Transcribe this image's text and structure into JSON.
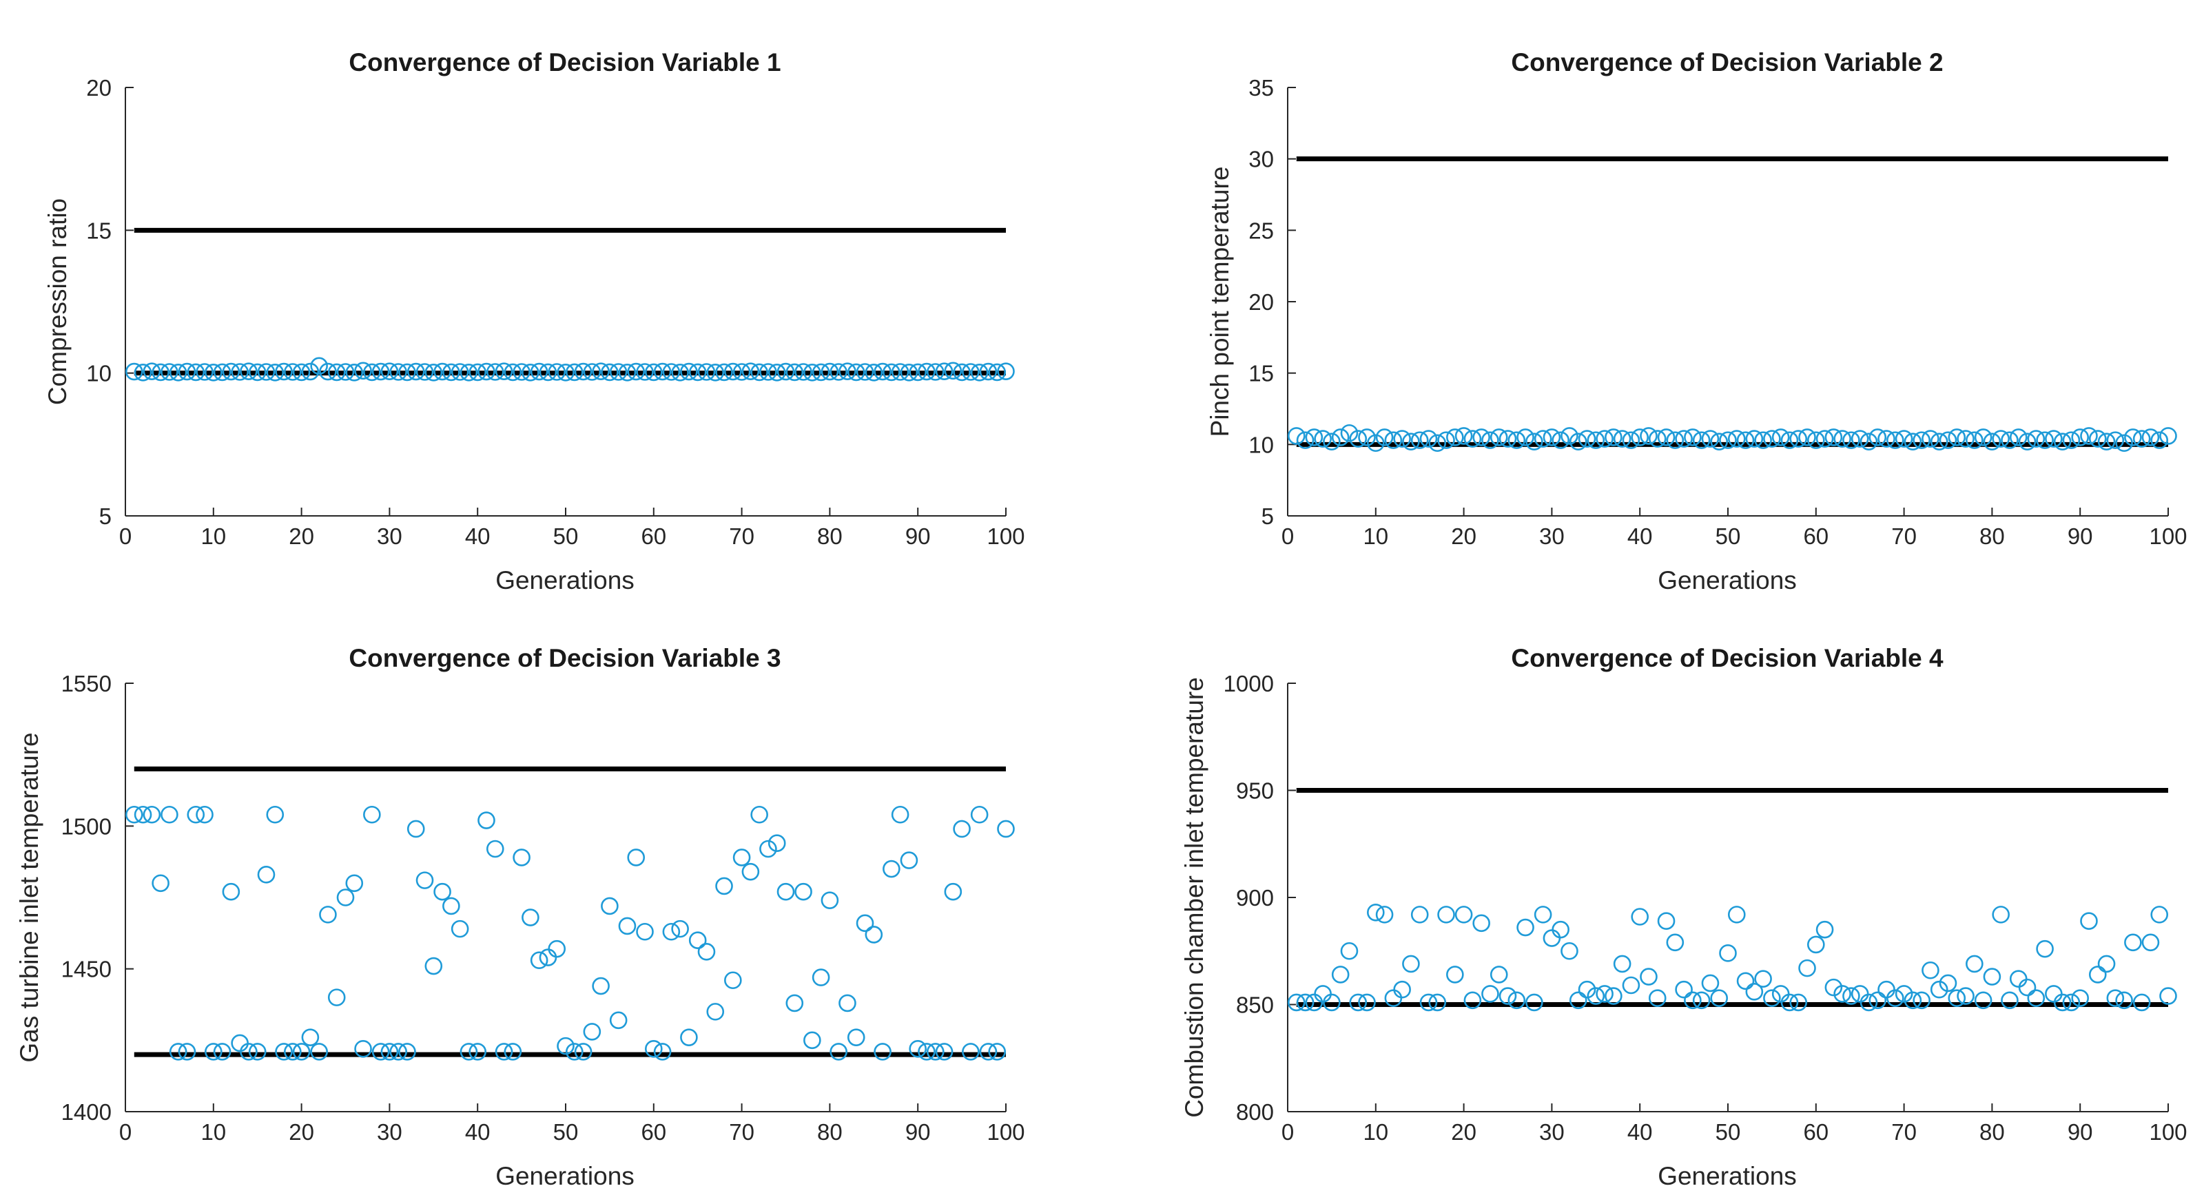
{
  "colors": {
    "marker": "#1f9bd8",
    "bound": "#000000",
    "axis": "#262626"
  },
  "chart_data": [
    {
      "type": "scatter",
      "title": "Convergence of Decision Variable 1",
      "xlabel": "Generations",
      "ylabel": "Compression ratio",
      "xlim": [
        0,
        100
      ],
      "ylim": [
        5,
        20
      ],
      "xticks": [
        0,
        10,
        20,
        30,
        40,
        50,
        60,
        70,
        80,
        90,
        100
      ],
      "yticks": [
        5,
        10,
        15,
        20
      ],
      "bounds": [
        10,
        15
      ],
      "x": [
        1,
        2,
        3,
        4,
        5,
        6,
        7,
        8,
        9,
        10,
        11,
        12,
        13,
        14,
        15,
        16,
        17,
        18,
        19,
        20,
        21,
        22,
        23,
        24,
        25,
        26,
        27,
        28,
        29,
        30,
        31,
        32,
        33,
        34,
        35,
        36,
        37,
        38,
        39,
        40,
        41,
        42,
        43,
        44,
        45,
        46,
        47,
        48,
        49,
        50,
        51,
        52,
        53,
        54,
        55,
        56,
        57,
        58,
        59,
        60,
        61,
        62,
        63,
        64,
        65,
        66,
        67,
        68,
        69,
        70,
        71,
        72,
        73,
        74,
        75,
        76,
        77,
        78,
        79,
        80,
        81,
        82,
        83,
        84,
        85,
        86,
        87,
        88,
        89,
        90,
        91,
        92,
        93,
        94,
        95,
        96,
        97,
        98,
        99,
        100
      ],
      "values": [
        10.05,
        10.02,
        10.06,
        10.03,
        10.04,
        10.02,
        10.05,
        10.03,
        10.04,
        10.02,
        10.03,
        10.05,
        10.04,
        10.06,
        10.03,
        10.04,
        10.02,
        10.05,
        10.04,
        10.03,
        10.05,
        10.25,
        10.05,
        10.03,
        10.04,
        10.02,
        10.08,
        10.03,
        10.05,
        10.06,
        10.04,
        10.03,
        10.05,
        10.04,
        10.02,
        10.05,
        10.03,
        10.04,
        10.02,
        10.03,
        10.05,
        10.04,
        10.06,
        10.03,
        10.04,
        10.02,
        10.05,
        10.03,
        10.04,
        10.02,
        10.03,
        10.05,
        10.04,
        10.06,
        10.03,
        10.04,
        10.02,
        10.05,
        10.04,
        10.03,
        10.05,
        10.04,
        10.02,
        10.05,
        10.03,
        10.04,
        10.02,
        10.03,
        10.05,
        10.04,
        10.06,
        10.03,
        10.04,
        10.02,
        10.05,
        10.03,
        10.04,
        10.02,
        10.03,
        10.05,
        10.04,
        10.06,
        10.03,
        10.04,
        10.02,
        10.05,
        10.03,
        10.04,
        10.02,
        10.03,
        10.05,
        10.04,
        10.06,
        10.08,
        10.03,
        10.04,
        10.02,
        10.05,
        10.03,
        10.06
      ]
    },
    {
      "type": "scatter",
      "title": "Convergence of Decision Variable 2",
      "xlabel": "Generations",
      "ylabel": "Pinch point temperature",
      "xlim": [
        0,
        100
      ],
      "ylim": [
        5,
        35
      ],
      "xticks": [
        0,
        10,
        20,
        30,
        40,
        50,
        60,
        70,
        80,
        90,
        100
      ],
      "yticks": [
        5,
        10,
        15,
        20,
        25,
        30,
        35
      ],
      "bounds": [
        10,
        30
      ],
      "x": [
        1,
        2,
        3,
        4,
        5,
        6,
        7,
        8,
        9,
        10,
        11,
        12,
        13,
        14,
        15,
        16,
        17,
        18,
        19,
        20,
        21,
        22,
        23,
        24,
        25,
        26,
        27,
        28,
        29,
        30,
        31,
        32,
        33,
        34,
        35,
        36,
        37,
        38,
        39,
        40,
        41,
        42,
        43,
        44,
        45,
        46,
        47,
        48,
        49,
        50,
        51,
        52,
        53,
        54,
        55,
        56,
        57,
        58,
        59,
        60,
        61,
        62,
        63,
        64,
        65,
        66,
        67,
        68,
        69,
        70,
        71,
        72,
        73,
        74,
        75,
        76,
        77,
        78,
        79,
        80,
        81,
        82,
        83,
        84,
        85,
        86,
        87,
        88,
        89,
        90,
        91,
        92,
        93,
        94,
        95,
        96,
        97,
        98,
        99,
        100
      ],
      "values": [
        10.6,
        10.3,
        10.5,
        10.4,
        10.2,
        10.5,
        10.8,
        10.4,
        10.5,
        10.1,
        10.5,
        10.3,
        10.4,
        10.2,
        10.3,
        10.4,
        10.1,
        10.3,
        10.5,
        10.6,
        10.4,
        10.5,
        10.3,
        10.5,
        10.4,
        10.3,
        10.5,
        10.2,
        10.4,
        10.5,
        10.3,
        10.6,
        10.2,
        10.4,
        10.3,
        10.4,
        10.5,
        10.4,
        10.3,
        10.5,
        10.6,
        10.4,
        10.5,
        10.3,
        10.4,
        10.5,
        10.3,
        10.4,
        10.2,
        10.3,
        10.4,
        10.3,
        10.4,
        10.3,
        10.4,
        10.5,
        10.3,
        10.4,
        10.5,
        10.3,
        10.4,
        10.5,
        10.4,
        10.3,
        10.4,
        10.2,
        10.5,
        10.4,
        10.3,
        10.4,
        10.2,
        10.3,
        10.4,
        10.2,
        10.3,
        10.5,
        10.4,
        10.3,
        10.5,
        10.2,
        10.4,
        10.3,
        10.5,
        10.2,
        10.4,
        10.3,
        10.4,
        10.2,
        10.3,
        10.5,
        10.6,
        10.4,
        10.2,
        10.3,
        10.1,
        10.5,
        10.4,
        10.5,
        10.3,
        10.6
      ]
    },
    {
      "type": "scatter",
      "title": "Convergence of Decision Variable 3",
      "xlabel": "Generations",
      "ylabel": "Gas turbine inlet temperature",
      "xlim": [
        0,
        100
      ],
      "ylim": [
        1400,
        1550
      ],
      "xticks": [
        0,
        10,
        20,
        30,
        40,
        50,
        60,
        70,
        80,
        90,
        100
      ],
      "yticks": [
        1400,
        1450,
        1500,
        1550
      ],
      "bounds": [
        1420,
        1520
      ],
      "x": [
        1,
        2,
        3,
        4,
        5,
        6,
        7,
        8,
        9,
        10,
        11,
        12,
        13,
        14,
        15,
        16,
        17,
        18,
        19,
        20,
        21,
        22,
        23,
        24,
        25,
        26,
        27,
        28,
        29,
        30,
        31,
        32,
        33,
        34,
        35,
        36,
        37,
        38,
        39,
        40,
        41,
        42,
        43,
        44,
        45,
        46,
        47,
        48,
        49,
        50,
        51,
        52,
        53,
        54,
        55,
        56,
        57,
        58,
        59,
        60,
        61,
        62,
        63,
        64,
        65,
        66,
        67,
        68,
        69,
        70,
        71,
        72,
        73,
        74,
        75,
        76,
        77,
        78,
        79,
        80,
        81,
        82,
        83,
        84,
        85,
        86,
        87,
        88,
        89,
        90,
        91,
        92,
        93,
        94,
        95,
        96,
        97,
        98,
        99,
        100
      ],
      "values": [
        1504,
        1504,
        1504,
        1480,
        1504,
        1421,
        1421,
        1504,
        1504,
        1421,
        1421,
        1477,
        1424,
        1421,
        1421,
        1483,
        1504,
        1421,
        1421,
        1421,
        1426,
        1421,
        1469,
        1440,
        1475,
        1480,
        1422,
        1504,
        1421,
        1421,
        1421,
        1421,
        1499,
        1481,
        1451,
        1477,
        1472,
        1464,
        1421,
        1421,
        1502,
        1492,
        1421,
        1421,
        1489,
        1468,
        1453,
        1454,
        1457,
        1423,
        1421,
        1421,
        1428,
        1444,
        1472,
        1432,
        1465,
        1489,
        1463,
        1422,
        1421,
        1463,
        1464,
        1426,
        1460,
        1456,
        1435,
        1479,
        1446,
        1489,
        1484,
        1504,
        1492,
        1494,
        1477,
        1438,
        1477,
        1425,
        1447,
        1474,
        1421,
        1438,
        1426,
        1466,
        1462,
        1421,
        1485,
        1504,
        1488,
        1422,
        1421,
        1421,
        1421,
        1477,
        1499,
        1421,
        1504,
        1421,
        1421,
        1499
      ]
    },
    {
      "type": "scatter",
      "title": "Convergence of Decision Variable 4",
      "xlabel": "Generations",
      "ylabel": "Combustion chamber inlet temperature",
      "xlim": [
        0,
        100
      ],
      "ylim": [
        800,
        1000
      ],
      "xticks": [
        0,
        10,
        20,
        30,
        40,
        50,
        60,
        70,
        80,
        90,
        100
      ],
      "yticks": [
        800,
        850,
        900,
        950,
        1000
      ],
      "bounds": [
        850,
        950
      ],
      "x": [
        1,
        2,
        3,
        4,
        5,
        6,
        7,
        8,
        9,
        10,
        11,
        12,
        13,
        14,
        15,
        16,
        17,
        18,
        19,
        20,
        21,
        22,
        23,
        24,
        25,
        26,
        27,
        28,
        29,
        30,
        31,
        32,
        33,
        34,
        35,
        36,
        37,
        38,
        39,
        40,
        41,
        42,
        43,
        44,
        45,
        46,
        47,
        48,
        49,
        50,
        51,
        52,
        53,
        54,
        55,
        56,
        57,
        58,
        59,
        60,
        61,
        62,
        63,
        64,
        65,
        66,
        67,
        68,
        69,
        70,
        71,
        72,
        73,
        74,
        75,
        76,
        77,
        78,
        79,
        80,
        81,
        82,
        83,
        84,
        85,
        86,
        87,
        88,
        89,
        90,
        91,
        92,
        93,
        94,
        95,
        96,
        97,
        98,
        99,
        100
      ],
      "values": [
        851,
        851,
        851,
        855,
        851,
        864,
        875,
        851,
        851,
        893,
        892,
        853,
        857,
        869,
        892,
        851,
        851,
        892,
        864,
        892,
        852,
        888,
        855,
        864,
        854,
        852,
        886,
        851,
        892,
        881,
        885,
        875,
        852,
        857,
        854,
        855,
        854,
        869,
        859,
        891,
        863,
        853,
        889,
        879,
        857,
        852,
        852,
        860,
        853,
        874,
        892,
        861,
        856,
        862,
        853,
        855,
        851,
        851,
        867,
        878,
        885,
        858,
        855,
        854,
        855,
        851,
        852,
        857,
        853,
        855,
        852,
        852,
        866,
        857,
        860,
        853,
        854,
        869,
        852,
        863,
        892,
        852,
        862,
        858,
        853,
        876,
        855,
        851,
        851,
        853,
        889,
        864,
        869,
        853,
        852,
        879,
        851,
        879,
        892,
        854
      ]
    }
  ]
}
